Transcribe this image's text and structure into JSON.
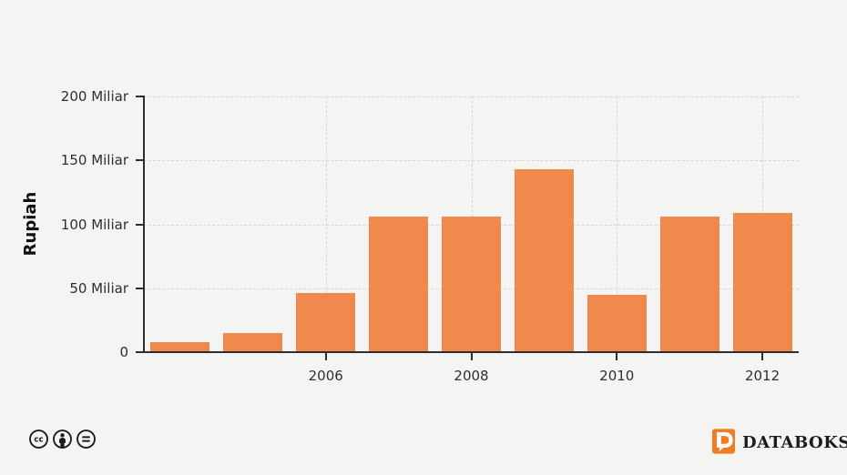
{
  "colors": {
    "background": "#f4f4f3",
    "bar": "#f0894d",
    "axis": "#2e2e2e",
    "grid": "#d5d5d5",
    "brand_orange": "#f07d22",
    "brand_text": "#1c1c24",
    "license_icon": "#1b1b1b"
  },
  "chart_data": {
    "type": "bar",
    "categories": [
      2004,
      2005,
      2006,
      2007,
      2008,
      2009,
      2010,
      2011,
      2012
    ],
    "values": [
      7.5,
      15,
      46,
      106,
      106,
      143,
      45,
      106,
      109
    ],
    "title": "",
    "xlabel": "",
    "ylabel": "Rupiah",
    "ylim": [
      0,
      200
    ],
    "yticks": [
      {
        "value": 0,
        "label": "0"
      },
      {
        "value": 50,
        "label": "50 Miliar"
      },
      {
        "value": 100,
        "label": "100 Miliar"
      },
      {
        "value": 150,
        "label": "150 Miliar"
      },
      {
        "value": 200,
        "label": "200 Miliar"
      }
    ],
    "xticks": [
      {
        "category": 2006,
        "label": "2006"
      },
      {
        "category": 2008,
        "label": "2008"
      },
      {
        "category": 2010,
        "label": "2010"
      },
      {
        "category": 2012,
        "label": "2012"
      }
    ],
    "grid": true,
    "legend": false
  },
  "footer": {
    "license": {
      "icons": [
        "cc-icon",
        "attribution-icon",
        "no-derivatives-icon"
      ],
      "cc_text": "cc"
    },
    "brand": {
      "name": "DATABOKS"
    }
  }
}
